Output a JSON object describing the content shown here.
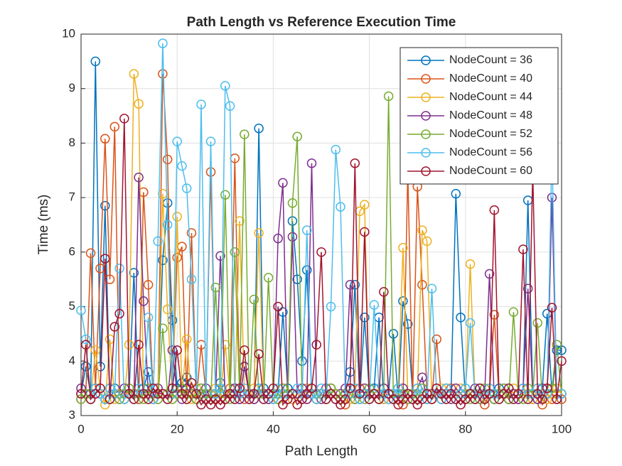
{
  "chart_data": {
    "type": "line",
    "title": "Path Length vs Reference Execution Time",
    "xlabel": "Path Length",
    "ylabel": "Time (ms)",
    "x": [
      0,
      1,
      2,
      3,
      4,
      5,
      6,
      7,
      8,
      9,
      10,
      11,
      12,
      13,
      14,
      15,
      16,
      17,
      18,
      19,
      20,
      21,
      22,
      23,
      24,
      25,
      26,
      27,
      28,
      29,
      30,
      31,
      32,
      33,
      34,
      35,
      36,
      37,
      38,
      39,
      40,
      41,
      42,
      43,
      44,
      45,
      46,
      47,
      48,
      49,
      50,
      51,
      52,
      53,
      54,
      55,
      56,
      57,
      58,
      59,
      60,
      61,
      62,
      63,
      64,
      65,
      66,
      67,
      68,
      69,
      70,
      71,
      72,
      73,
      74,
      75,
      76,
      77,
      78,
      79,
      80,
      81,
      82,
      83,
      84,
      85,
      86,
      87,
      88,
      89,
      90,
      91,
      92,
      93,
      94,
      95,
      96,
      97,
      98,
      99,
      100
    ],
    "series": [
      {
        "name": "NodeCount = 36",
        "color": "#0072BD",
        "values": [
          3.4,
          3.9,
          3.4,
          9.5,
          3.9,
          6.85,
          3.3,
          3.5,
          3.4,
          3.3,
          3.4,
          5.62,
          3.3,
          3.5,
          3.8,
          3.3,
          3.4,
          5.85,
          6.9,
          4.75,
          3.5,
          3.6,
          3.7,
          3.4,
          3.3,
          3.5,
          3.3,
          3.4,
          3.3,
          3.6,
          3.3,
          3.4,
          3.5,
          3.3,
          3.9,
          3.4,
          3.3,
          8.27,
          3.5,
          3.4,
          3.3,
          3.4,
          4.9,
          3.5,
          6.57,
          5.5,
          4.0,
          5.67,
          3.4,
          3.3,
          3.4,
          3.3,
          3.5,
          3.4,
          3.3,
          3.4,
          3.8,
          5.4,
          3.3,
          4.8,
          3.4,
          3.5,
          4.8,
          3.3,
          3.4,
          4.5,
          3.3,
          5.1,
          4.68,
          3.4,
          3.3,
          3.5,
          3.4,
          3.3,
          3.4,
          3.3,
          3.5,
          3.4,
          7.07,
          4.8,
          3.3,
          3.4,
          3.3,
          3.5,
          3.3,
          3.4,
          3.3,
          3.5,
          3.4,
          3.3,
          3.4,
          3.3,
          3.5,
          6.95,
          3.4,
          3.3,
          3.5,
          4.87,
          3.4,
          4.2,
          4.2
        ]
      },
      {
        "name": "NodeCount = 40",
        "color": "#D95319",
        "values": [
          3.3,
          3.4,
          5.98,
          3.5,
          5.7,
          8.08,
          5.5,
          8.3,
          3.4,
          3.3,
          3.5,
          3.4,
          3.3,
          7.1,
          5.4,
          3.4,
          3.3,
          9.27,
          7.7,
          3.5,
          5.9,
          6.1,
          3.4,
          6.35,
          3.3,
          4.3,
          3.4,
          7.47,
          3.3,
          3.4,
          3.3,
          3.5,
          7.72,
          3.4,
          3.3,
          3.4,
          3.3,
          3.5,
          3.4,
          3.3,
          3.4,
          3.3,
          3.5,
          3.4,
          3.3,
          3.4,
          3.5,
          3.3,
          3.4,
          3.3,
          3.4,
          3.3,
          3.5,
          3.4,
          3.3,
          3.2,
          3.4,
          3.3,
          3.5,
          3.4,
          3.3,
          3.4,
          3.3,
          3.5,
          3.3,
          3.4,
          3.3,
          3.2,
          7.5,
          3.3,
          7.2,
          5.4,
          3.4,
          3.3,
          4.4,
          3.3,
          3.4,
          3.5,
          3.3,
          3.4,
          3.3,
          3.4,
          3.3,
          3.5,
          3.2,
          3.4,
          4.85,
          3.3,
          3.4,
          3.3,
          3.4,
          3.3,
          3.5,
          3.4,
          3.3,
          3.5,
          3.2,
          3.4,
          3.3,
          3.4,
          3.3
        ]
      },
      {
        "name": "NodeCount = 44",
        "color": "#EDB120",
        "values": [
          3.3,
          3.4,
          3.3,
          4.2,
          3.5,
          3.2,
          4.4,
          3.3,
          3.4,
          3.3,
          4.3,
          9.27,
          8.72,
          3.4,
          3.3,
          3.5,
          3.4,
          7.07,
          4.95,
          3.3,
          6.65,
          3.4,
          4.4,
          3.3,
          3.5,
          3.4,
          3.3,
          3.4,
          3.5,
          3.3,
          4.3,
          3.4,
          3.3,
          6.57,
          3.4,
          3.3,
          3.5,
          6.35,
          3.4,
          3.3,
          3.4,
          3.3,
          3.5,
          3.4,
          3.3,
          3.4,
          3.3,
          3.5,
          3.4,
          3.3,
          3.4,
          3.3,
          3.5,
          3.4,
          3.3,
          3.4,
          3.3,
          3.5,
          6.75,
          6.87,
          3.3,
          3.4,
          3.5,
          3.3,
          3.4,
          3.3,
          3.5,
          6.08,
          3.4,
          3.3,
          3.4,
          6.4,
          6.2,
          3.3,
          3.4,
          3.5,
          3.3,
          3.4,
          3.3,
          3.5,
          3.4,
          5.78,
          3.3,
          3.4,
          3.3,
          3.5,
          3.4,
          3.3,
          3.4,
          3.3,
          3.5,
          3.4,
          3.3,
          3.4,
          3.3,
          3.5,
          3.4,
          3.3,
          3.4,
          3.5,
          3.4
        ]
      },
      {
        "name": "NodeCount = 48",
        "color": "#7E2F8E",
        "values": [
          3.5,
          3.4,
          3.3,
          3.5,
          3.4,
          3.3,
          3.5,
          3.4,
          3.3,
          3.5,
          3.4,
          3.3,
          7.37,
          5.1,
          3.4,
          3.3,
          3.5,
          3.4,
          3.3,
          4.2,
          3.4,
          3.3,
          3.5,
          3.4,
          3.3,
          3.4,
          3.5,
          3.3,
          3.4,
          5.93,
          3.3,
          3.4,
          3.5,
          3.3,
          3.9,
          3.4,
          3.3,
          3.5,
          3.4,
          3.3,
          3.4,
          6.25,
          7.27,
          3.3,
          6.28,
          3.4,
          3.5,
          3.3,
          7.63,
          3.4,
          3.3,
          3.5,
          3.4,
          3.3,
          3.4,
          3.5,
          5.4,
          3.3,
          3.4,
          3.5,
          3.3,
          3.4,
          3.3,
          3.5,
          3.4,
          3.3,
          3.4,
          3.5,
          3.3,
          3.4,
          3.5,
          3.7,
          3.3,
          3.4,
          3.5,
          3.3,
          3.4,
          3.3,
          3.5,
          3.4,
          3.3,
          3.4,
          3.5,
          3.3,
          3.4,
          5.6,
          3.3,
          3.4,
          3.5,
          3.3,
          3.4,
          3.3,
          3.5,
          5.33,
          3.4,
          3.3,
          3.5,
          3.4,
          7.0,
          3.3,
          3.4
        ]
      },
      {
        "name": "NodeCount = 52",
        "color": "#77AC30",
        "values": [
          3.3,
          3.4,
          3.3,
          3.5,
          3.4,
          3.3,
          3.5,
          3.4,
          3.3,
          3.4,
          3.5,
          3.3,
          3.4,
          3.3,
          3.5,
          3.4,
          3.3,
          4.6,
          3.4,
          3.3,
          3.4,
          3.5,
          3.3,
          3.4,
          3.3,
          3.5,
          3.4,
          3.3,
          5.35,
          3.4,
          7.05,
          3.3,
          6.0,
          3.4,
          8.16,
          3.3,
          5.13,
          3.4,
          3.3,
          5.53,
          3.4,
          3.3,
          3.5,
          3.4,
          6.9,
          8.12,
          3.3,
          3.4,
          3.5,
          3.3,
          3.4,
          3.3,
          3.5,
          3.4,
          3.3,
          3.4,
          3.5,
          3.3,
          3.4,
          3.3,
          3.5,
          3.4,
          3.3,
          3.4,
          8.86,
          3.3,
          3.5,
          3.4,
          3.3,
          3.4,
          3.3,
          3.5,
          3.4,
          3.3,
          3.4,
          3.3,
          3.5,
          3.4,
          3.3,
          3.4,
          3.5,
          3.3,
          3.4,
          3.3,
          3.5,
          3.4,
          3.3,
          3.4,
          3.5,
          3.3,
          4.9,
          3.4,
          3.3,
          3.5,
          3.4,
          4.7,
          3.3,
          3.4,
          3.5,
          4.3,
          3.4
        ]
      },
      {
        "name": "NodeCount = 56",
        "color": "#4DBEEE",
        "values": [
          4.93,
          4.4,
          3.3,
          3.5,
          3.4,
          3.3,
          3.5,
          3.4,
          5.7,
          3.3,
          3.4,
          3.3,
          3.5,
          3.4,
          4.8,
          3.3,
          6.2,
          9.83,
          6.5,
          3.4,
          8.03,
          7.58,
          7.17,
          5.5,
          3.4,
          8.71,
          3.3,
          8.03,
          3.4,
          3.5,
          9.05,
          8.68,
          3.3,
          3.4,
          3.5,
          3.3,
          3.4,
          3.5,
          3.3,
          3.4,
          3.3,
          3.5,
          3.4,
          3.3,
          3.4,
          3.5,
          3.3,
          6.4,
          3.4,
          3.3,
          3.5,
          3.4,
          5.0,
          7.88,
          6.83,
          3.3,
          3.4,
          3.5,
          3.3,
          3.4,
          3.3,
          5.03,
          3.5,
          3.4,
          3.3,
          3.4,
          3.5,
          3.3,
          3.4,
          3.3,
          3.5,
          3.4,
          3.3,
          5.33,
          3.4,
          3.3,
          3.5,
          3.4,
          3.3,
          3.4,
          3.5,
          4.7,
          3.3,
          3.4,
          3.3,
          3.5,
          3.4,
          3.3,
          3.4,
          3.5,
          3.3,
          3.4,
          3.5,
          3.3,
          3.4,
          3.5,
          3.3,
          3.4,
          7.95,
          3.3,
          3.4
        ]
      },
      {
        "name": "NodeCount = 60",
        "color": "#A2142F",
        "values": [
          3.4,
          4.3,
          3.3,
          3.4,
          3.5,
          5.88,
          3.3,
          4.63,
          4.87,
          8.45,
          3.4,
          3.3,
          4.3,
          3.4,
          3.3,
          3.5,
          3.4,
          3.4,
          3.3,
          3.5,
          4.2,
          3.4,
          3.3,
          3.6,
          3.4,
          3.2,
          3.3,
          3.2,
          3.3,
          3.2,
          3.3,
          3.4,
          3.3,
          3.5,
          4.2,
          3.3,
          3.4,
          4.13,
          3.3,
          3.4,
          3.5,
          5.0,
          3.2,
          3.3,
          3.4,
          3.2,
          3.3,
          3.4,
          3.5,
          4.3,
          6.0,
          3.3,
          3.4,
          3.3,
          3.2,
          3.3,
          3.5,
          7.63,
          3.4,
          6.37,
          3.3,
          3.4,
          3.3,
          5.27,
          3.4,
          3.3,
          3.2,
          3.3,
          3.4,
          3.3,
          3.2,
          3.3,
          3.4,
          3.3,
          3.5,
          3.4,
          3.3,
          3.4,
          3.3,
          3.2,
          3.3,
          3.4,
          3.3,
          3.5,
          3.3,
          3.4,
          6.77,
          3.3,
          3.4,
          3.5,
          3.3,
          3.4,
          6.05,
          3.3,
          7.5,
          3.4,
          3.3,
          3.5,
          4.98,
          3.3,
          4.0
        ]
      }
    ],
    "xlim": [
      0,
      100
    ],
    "xticks": [
      0,
      20,
      40,
      60,
      80,
      100
    ],
    "ylim": [
      3,
      10
    ],
    "yticks": [
      3,
      4,
      5,
      6,
      7,
      8,
      9,
      10
    ],
    "grid": true,
    "legend": "northeast",
    "marker": "circle"
  }
}
